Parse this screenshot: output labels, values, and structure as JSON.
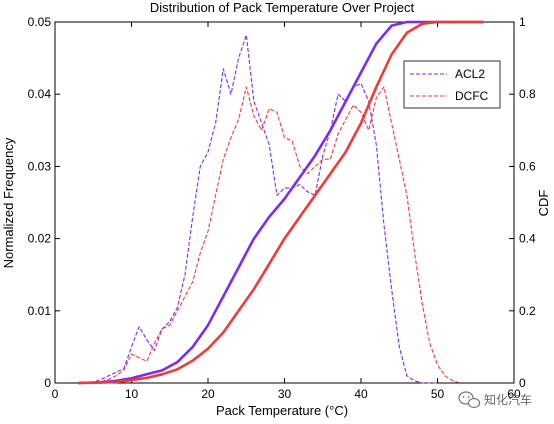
{
  "chart_data": {
    "type": "line",
    "title": "Distribution of Pack Temperature Over Project",
    "xlabel": "Pack Temperature (°C)",
    "ylabel": "Normalized Frequency",
    "y2label": "CDF",
    "xlim": [
      0,
      60
    ],
    "ylim": [
      0,
      0.05
    ],
    "y2lim": [
      0,
      1
    ],
    "xticks": [
      "0",
      "10",
      "20",
      "30",
      "40",
      "50",
      "60"
    ],
    "yticks": [
      "0",
      "0.01",
      "0.02",
      "0.03",
      "0.04",
      "0.05"
    ],
    "y2ticks": [
      "0",
      "0.2",
      "0.4",
      "0.6",
      "0.8",
      "1"
    ],
    "grid": false,
    "legend_position": "top-right",
    "colors": {
      "ACL2": "#7b2cf0",
      "DCFC": "#f03a3a"
    },
    "series": [
      {
        "name": "ACL2",
        "axis": "left",
        "style": "dashed",
        "x": [
          3,
          4,
          5,
          6,
          7,
          8,
          9,
          10,
          11,
          12,
          13,
          14,
          15,
          16,
          17,
          18,
          19,
          20,
          21,
          22,
          23,
          24,
          25,
          26,
          27,
          28,
          29,
          30,
          31,
          32,
          33,
          34,
          35,
          36,
          37,
          38,
          39,
          40,
          41,
          42,
          43,
          44,
          45,
          46,
          47,
          48,
          49,
          50
        ],
        "values": [
          0,
          0,
          0.0001,
          0.0005,
          0.001,
          0.0015,
          0.002,
          0.005,
          0.0078,
          0.006,
          0.0045,
          0.0075,
          0.0085,
          0.0105,
          0.015,
          0.023,
          0.03,
          0.032,
          0.036,
          0.0435,
          0.04,
          0.045,
          0.0482,
          0.039,
          0.036,
          0.033,
          0.026,
          0.027,
          0.027,
          0.0275,
          0.0265,
          0.026,
          0.0315,
          0.035,
          0.04,
          0.039,
          0.041,
          0.0415,
          0.039,
          0.033,
          0.022,
          0.013,
          0.005,
          0.001,
          0.0003,
          0,
          0,
          0
        ]
      },
      {
        "name": "DCFC",
        "axis": "left",
        "style": "dashed",
        "x": [
          3,
          4,
          5,
          6,
          7,
          8,
          9,
          10,
          11,
          12,
          13,
          14,
          15,
          16,
          17,
          18,
          19,
          20,
          21,
          22,
          23,
          24,
          25,
          26,
          27,
          28,
          29,
          30,
          31,
          32,
          33,
          34,
          35,
          36,
          37,
          38,
          39,
          40,
          41,
          42,
          43,
          44,
          45,
          46,
          47,
          48,
          49,
          50,
          51,
          52,
          53
        ],
        "values": [
          0,
          0,
          0,
          0.0002,
          0.0005,
          0.001,
          0.0018,
          0.004,
          0.0035,
          0.003,
          0.0055,
          0.0075,
          0.008,
          0.01,
          0.012,
          0.014,
          0.018,
          0.021,
          0.026,
          0.031,
          0.034,
          0.0365,
          0.041,
          0.037,
          0.035,
          0.038,
          0.0375,
          0.034,
          0.0335,
          0.03,
          0.029,
          0.03,
          0.031,
          0.031,
          0.0345,
          0.0365,
          0.0385,
          0.0375,
          0.035,
          0.0395,
          0.041,
          0.036,
          0.031,
          0.026,
          0.018,
          0.011,
          0.0055,
          0.0025,
          0.001,
          0.0003,
          0
        ]
      },
      {
        "name": "ACL2",
        "axis": "right",
        "style": "solid",
        "x": [
          3,
          6,
          8,
          10,
          12,
          14,
          16,
          18,
          20,
          22,
          24,
          26,
          28,
          30,
          32,
          34,
          36,
          38,
          40,
          42,
          44,
          46,
          48,
          50,
          52,
          56
        ],
        "values": [
          0,
          0.002,
          0.006,
          0.013,
          0.024,
          0.035,
          0.058,
          0.1,
          0.16,
          0.24,
          0.32,
          0.4,
          0.46,
          0.51,
          0.57,
          0.63,
          0.7,
          0.78,
          0.86,
          0.94,
          0.99,
          1,
          1,
          1,
          1,
          1
        ]
      },
      {
        "name": "DCFC",
        "axis": "right",
        "style": "solid",
        "x": [
          3,
          6,
          8,
          10,
          12,
          14,
          16,
          18,
          20,
          22,
          24,
          26,
          28,
          30,
          32,
          34,
          36,
          38,
          40,
          42,
          44,
          46,
          48,
          50,
          52,
          56
        ],
        "values": [
          0,
          0.001,
          0.003,
          0.008,
          0.014,
          0.024,
          0.038,
          0.062,
          0.095,
          0.14,
          0.2,
          0.26,
          0.33,
          0.4,
          0.46,
          0.52,
          0.58,
          0.64,
          0.72,
          0.82,
          0.91,
          0.97,
          0.995,
          1,
          1,
          1
        ]
      }
    ]
  },
  "watermark": {
    "text": "知化汽车",
    "icon": "wechat-icon"
  }
}
